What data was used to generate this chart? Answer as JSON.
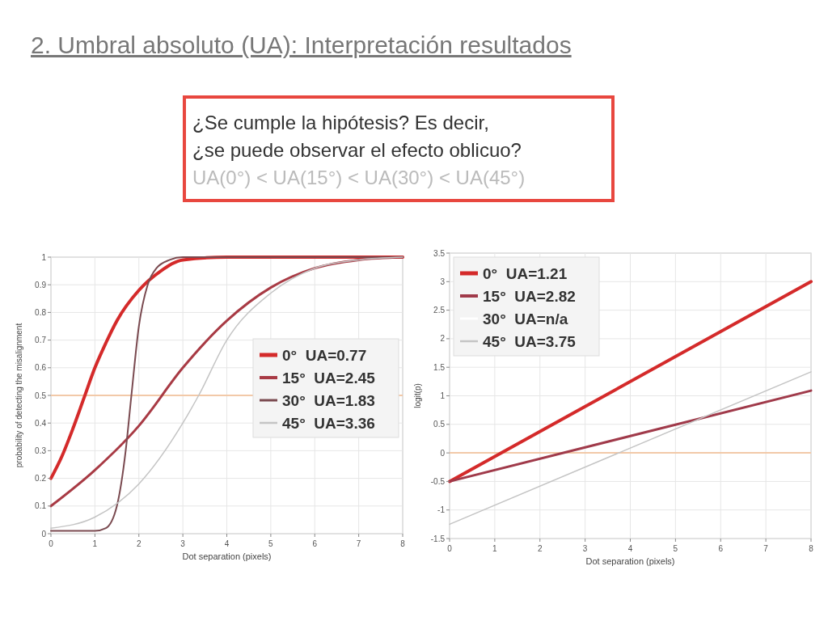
{
  "chart_data": [
    {
      "type": "line",
      "title": "2. Umbral absoluto (UA): Interpretación resultados",
      "annotations": [
        "¿Se cumple la hipótesis? Es decir,",
        "¿se puede observar el efecto oblicuo?",
        "UA(0°) < UA(15°) < UA(30°) < UA(45°)"
      ],
      "xlabel": "Dot separation (pixels)",
      "ylabel": "probability of detecting the misalignment",
      "xlim": [
        0,
        8
      ],
      "xticks": [
        0,
        1,
        2,
        3,
        4,
        5,
        6,
        7,
        8
      ],
      "ylim": [
        0,
        1
      ],
      "yticks": [
        0,
        0.1,
        0.2,
        0.3,
        0.4,
        0.5,
        0.6,
        0.7,
        0.8,
        0.9,
        1
      ],
      "grid": true,
      "legend": "right",
      "ref_lines": [
        {
          "axis": "y",
          "value": 0.5,
          "color": "#f2c9a8"
        }
      ],
      "series": [
        {
          "name": "0°  UA=0.77",
          "color": "#d42a2a",
          "x": [
            0,
            0.25,
            0.5,
            0.75,
            1,
            1.25,
            1.5,
            2,
            2.5,
            3,
            4,
            8
          ],
          "values": [
            0.2,
            0.28,
            0.38,
            0.49,
            0.6,
            0.69,
            0.77,
            0.88,
            0.95,
            0.99,
            1,
            1
          ]
        },
        {
          "name": "15°  UA=2.45",
          "color": "#a83a44",
          "x": [
            0,
            1,
            2,
            3,
            4,
            5,
            6,
            7,
            8
          ],
          "values": [
            0.1,
            0.23,
            0.39,
            0.6,
            0.77,
            0.89,
            0.96,
            0.99,
            1
          ]
        },
        {
          "name": "30°  UA=1.83",
          "color": "#7a4a50",
          "x": [
            0,
            1,
            1.25,
            1.5,
            1.7,
            1.83,
            2,
            2.2,
            2.4,
            2.7,
            3,
            8
          ],
          "values": [
            0.01,
            0.01,
            0.02,
            0.1,
            0.3,
            0.5,
            0.75,
            0.9,
            0.96,
            0.99,
            1,
            1
          ]
        },
        {
          "name": "45°  UA=3.36",
          "color": "#c4c4c4",
          "x": [
            0,
            1,
            2,
            3,
            3.36,
            4,
            5,
            6,
            7,
            8
          ],
          "values": [
            0.02,
            0.06,
            0.18,
            0.4,
            0.5,
            0.7,
            0.87,
            0.96,
            0.99,
            1
          ]
        }
      ]
    },
    {
      "type": "line",
      "xlabel": "Dot separation (pixels)",
      "ylabel": "logit(p)",
      "xlim": [
        0,
        8
      ],
      "xticks": [
        0,
        1,
        2,
        3,
        4,
        5,
        6,
        7,
        8
      ],
      "ylim": [
        -1.5,
        3.5
      ],
      "yticks": [
        -1.5,
        -1,
        -0.5,
        0,
        0.5,
        1,
        1.5,
        2,
        2.5,
        3,
        3.5
      ],
      "grid": true,
      "legend": "top left",
      "ref_lines": [
        {
          "axis": "y",
          "value": 0,
          "color": "#f2c9a8"
        }
      ],
      "series": [
        {
          "name": "0°  UA=1.21",
          "color": "#d42a2a",
          "x": [
            0,
            8
          ],
          "values": [
            -0.5,
            3.0
          ]
        },
        {
          "name": "15°  UA=2.82",
          "color": "#a03a4a",
          "x": [
            0,
            8
          ],
          "values": [
            -0.5,
            1.09
          ]
        },
        {
          "name": "30°  UA=n/a",
          "color": "#ffffff"
        },
        {
          "name": "45°  UA=3.75",
          "color": "#c4c4c4",
          "x": [
            0,
            8
          ],
          "values": [
            -1.25,
            1.42
          ]
        }
      ]
    }
  ]
}
